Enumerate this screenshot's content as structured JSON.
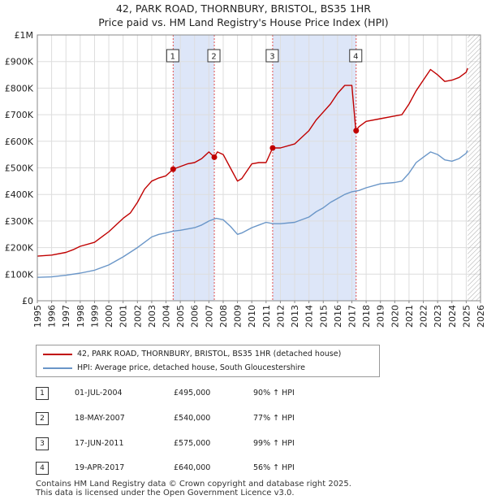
{
  "chart_data": {
    "type": "line",
    "title": "42, PARK ROAD, THORNBURY, BRISTOL, BS35 1HR",
    "subtitle": "Price paid vs. HM Land Registry's House Price Index (HPI)",
    "xlim": [
      1995,
      2026
    ],
    "ylim": [
      0,
      1000000
    ],
    "x_ticks": [
      "1995",
      "1996",
      "1997",
      "1998",
      "1999",
      "2000",
      "2001",
      "2002",
      "2003",
      "2004",
      "2005",
      "2006",
      "2007",
      "2008",
      "2009",
      "2010",
      "2011",
      "2012",
      "2013",
      "2014",
      "2015",
      "2016",
      "2017",
      "2018",
      "2019",
      "2020",
      "2021",
      "2022",
      "2023",
      "2024",
      "2025",
      "2026"
    ],
    "y_ticks": [
      {
        "value": 0,
        "label": "£0"
      },
      {
        "value": 100000,
        "label": "£100K"
      },
      {
        "value": 200000,
        "label": "£200K"
      },
      {
        "value": 300000,
        "label": "£300K"
      },
      {
        "value": 400000,
        "label": "£400K"
      },
      {
        "value": 500000,
        "label": "£500K"
      },
      {
        "value": 600000,
        "label": "£600K"
      },
      {
        "value": 700000,
        "label": "£700K"
      },
      {
        "value": 800000,
        "label": "£800K"
      },
      {
        "value": 900000,
        "label": "£900K"
      },
      {
        "value": 1000000,
        "label": "£1M"
      }
    ],
    "grid": true,
    "colors": {
      "property": "#c00000",
      "hpi": "#6a96c8",
      "shade": "#dde6f8",
      "marker_line": "#e05050",
      "hatch": "#aaaaaa"
    },
    "hatch_from": 2025.1,
    "series": [
      {
        "name": "42, PARK ROAD, THORNBURY, BRISTOL, BS35 1HR (detached house)",
        "color": "#c00000",
        "x": [
          1995.0,
          1996.0,
          1997.0,
          1997.5,
          1998.0,
          1999.0,
          2000.0,
          2001.0,
          2001.5,
          2002.0,
          2002.5,
          2003.0,
          2003.5,
          2004.0,
          2004.5,
          2005.0,
          2005.5,
          2006.0,
          2006.5,
          2007.0,
          2007.38,
          2007.6,
          2008.0,
          2008.5,
          2009.0,
          2009.3,
          2010.0,
          2010.5,
          2011.0,
          2011.46,
          2012.0,
          2013.0,
          2014.0,
          2014.5,
          2015.0,
          2015.5,
          2016.0,
          2016.5,
          2017.0,
          2017.28,
          2017.5,
          2018.0,
          2019.0,
          2020.0,
          2020.5,
          2021.0,
          2021.5,
          2022.0,
          2022.5,
          2023.0,
          2023.5,
          2024.0,
          2024.5,
          2025.0,
          2025.1
        ],
        "y": [
          168000,
          172000,
          182000,
          192000,
          205000,
          220000,
          260000,
          310000,
          330000,
          370000,
          420000,
          450000,
          462000,
          470000,
          495000,
          505000,
          515000,
          520000,
          535000,
          560000,
          540000,
          560000,
          550000,
          500000,
          450000,
          460000,
          515000,
          520000,
          520000,
          575000,
          575000,
          590000,
          640000,
          680000,
          710000,
          740000,
          780000,
          810000,
          810000,
          640000,
          655000,
          675000,
          685000,
          695000,
          700000,
          740000,
          790000,
          830000,
          870000,
          850000,
          825000,
          830000,
          840000,
          860000,
          875000
        ]
      },
      {
        "name": "HPI: Average price, detached house, South Gloucestershire",
        "color": "#6a96c8",
        "x": [
          1995.0,
          1996.0,
          1997.0,
          1998.0,
          1999.0,
          2000.0,
          2001.0,
          2002.0,
          2002.5,
          2003.0,
          2003.5,
          2004.0,
          2004.5,
          2005.0,
          2005.5,
          2006.0,
          2006.5,
          2007.0,
          2007.5,
          2008.0,
          2008.5,
          2009.0,
          2009.3,
          2010.0,
          2010.5,
          2011.0,
          2011.5,
          2012.0,
          2013.0,
          2014.0,
          2014.5,
          2015.0,
          2015.5,
          2016.0,
          2016.5,
          2017.0,
          2017.5,
          2018.0,
          2019.0,
          2020.0,
          2020.5,
          2021.0,
          2021.5,
          2022.0,
          2022.5,
          2023.0,
          2023.5,
          2024.0,
          2024.5,
          2025.0,
          2025.1
        ],
        "y": [
          88000,
          90000,
          96000,
          104000,
          115000,
          135000,
          165000,
          200000,
          220000,
          240000,
          250000,
          255000,
          262000,
          265000,
          270000,
          275000,
          285000,
          300000,
          310000,
          305000,
          280000,
          250000,
          255000,
          275000,
          285000,
          295000,
          290000,
          290000,
          295000,
          315000,
          335000,
          350000,
          370000,
          385000,
          400000,
          410000,
          415000,
          425000,
          440000,
          445000,
          450000,
          480000,
          520000,
          540000,
          560000,
          550000,
          530000,
          525000,
          535000,
          555000,
          565000
        ]
      }
    ],
    "annotations": [
      {
        "label": "1",
        "x": 2004.5,
        "y": 495000
      },
      {
        "label": "2",
        "x": 2007.38,
        "y": 540000
      },
      {
        "label": "3",
        "x": 2011.46,
        "y": 575000
      },
      {
        "label": "4",
        "x": 2017.3,
        "y": 640000
      }
    ],
    "shaded_ranges": [
      [
        2004.5,
        2007.38
      ],
      [
        2011.46,
        2017.3
      ]
    ]
  },
  "legend": {
    "property": "42, PARK ROAD, THORNBURY, BRISTOL, BS35 1HR (detached house)",
    "hpi": "HPI: Average price, detached house, South Gloucestershire"
  },
  "sales": [
    {
      "num": "1",
      "date": "01-JUL-2004",
      "price": "£495,000",
      "hpi": "90% ↑ HPI"
    },
    {
      "num": "2",
      "date": "18-MAY-2007",
      "price": "£540,000",
      "hpi": "77% ↑ HPI"
    },
    {
      "num": "3",
      "date": "17-JUN-2011",
      "price": "£575,000",
      "hpi": "99% ↑ HPI"
    },
    {
      "num": "4",
      "date": "19-APR-2017",
      "price": "£640,000",
      "hpi": "56% ↑ HPI"
    }
  ],
  "footer": {
    "line1": "Contains HM Land Registry data © Crown copyright and database right 2025.",
    "line2": "This data is licensed under the Open Government Licence v3.0."
  }
}
